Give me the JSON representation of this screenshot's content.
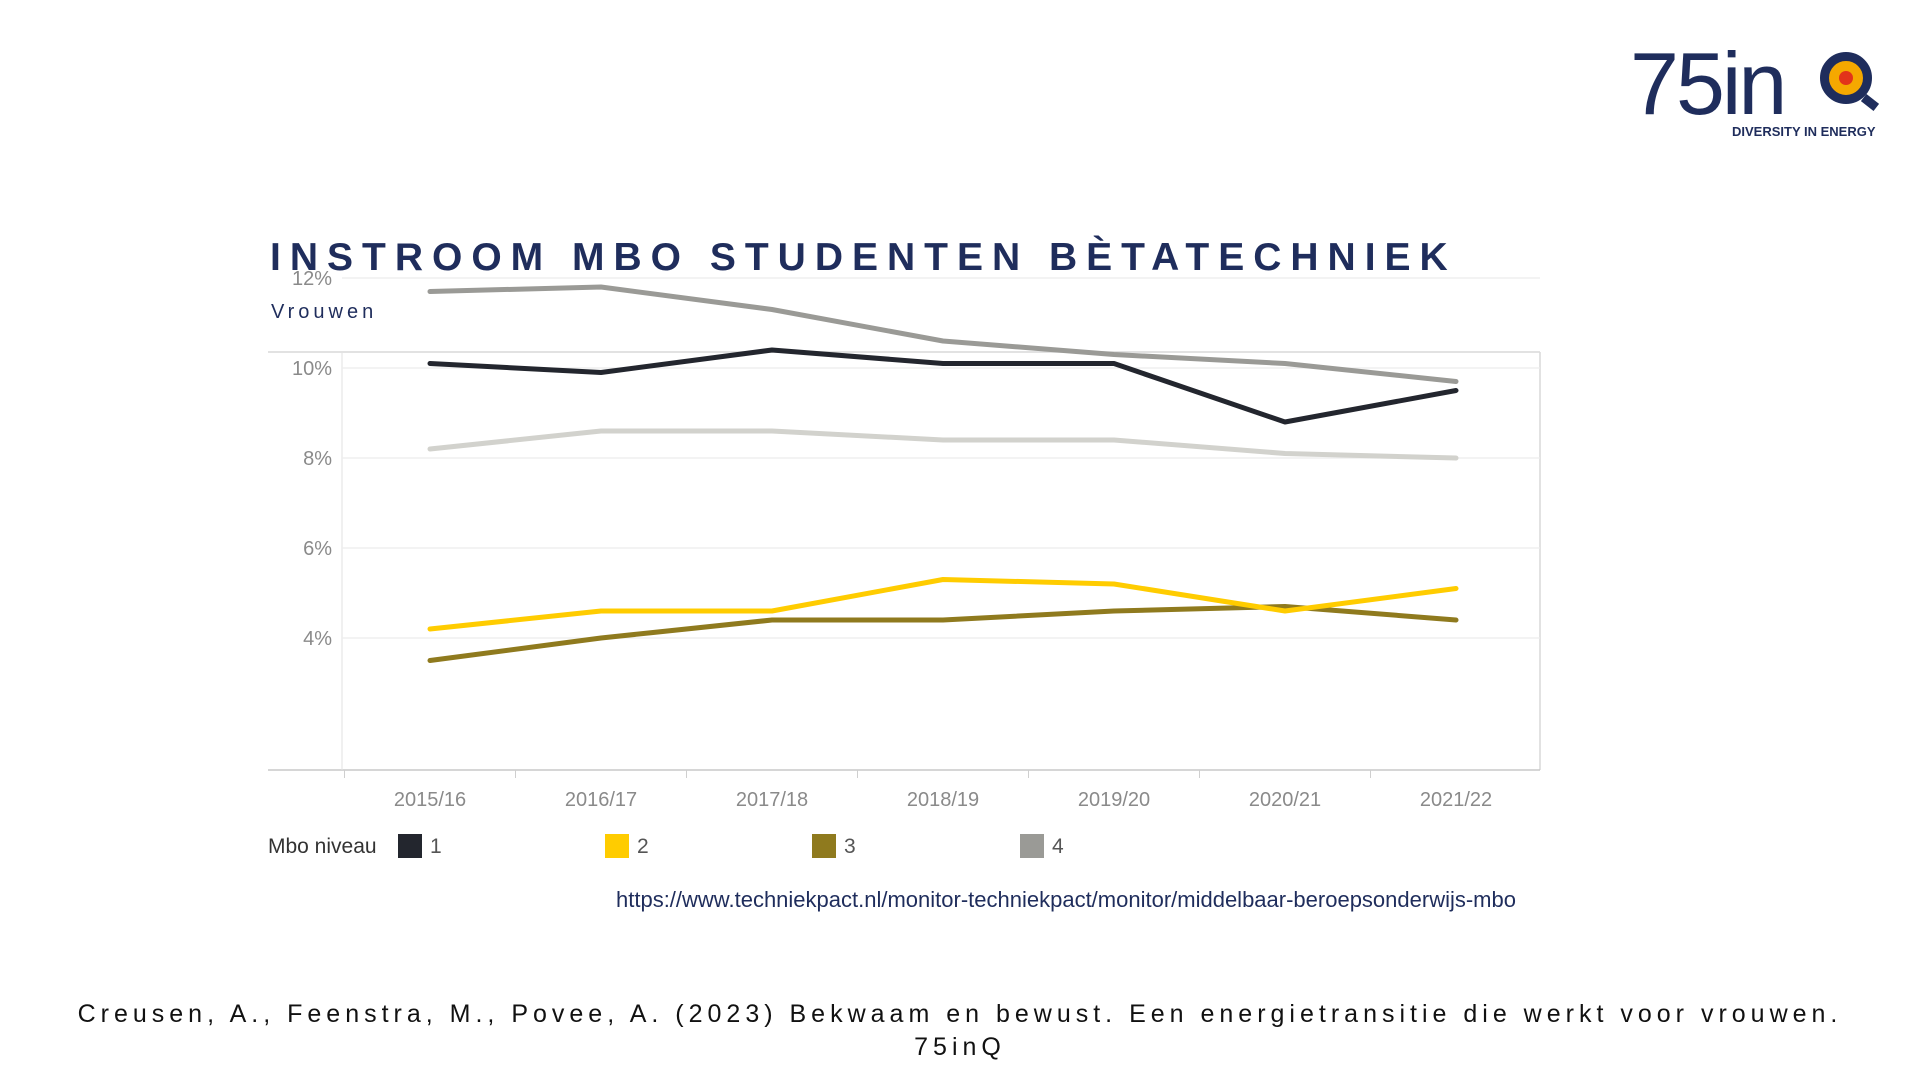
{
  "logo": {
    "text": "75inQ",
    "tagline": "DIVERSITY IN ENERGY"
  },
  "header": {
    "title": "INSTROOM MBO STUDENTEN BÈTATECHNIEK",
    "subtitle": "Vrouwen"
  },
  "legend": {
    "title": "Mbo niveau"
  },
  "source_url": "https://www.techniekpact.nl/monitor-techniekpact/monitor/middelbaar-beroepsonderwijs-mbo",
  "citation": {
    "line1": "Creusen, A., Feenstra, M., Povee, A. (2023) Bekwaam en bewust. Een energietransitie die werkt voor vrouwen.",
    "line2": "75inQ"
  },
  "chart_data": {
    "type": "line",
    "title": "INSTROOM MBO STUDENTEN BÈTATECHNIEK",
    "subtitle": "Vrouwen",
    "xlabel": "",
    "ylabel": "",
    "categories": [
      "2015/16",
      "2016/17",
      "2017/18",
      "2018/19",
      "2019/20",
      "2020/21",
      "2021/22"
    ],
    "y_ticks": [
      4,
      6,
      8,
      10,
      12
    ],
    "y_tick_format": "%",
    "ylim": [
      3.0,
      12.4
    ],
    "grid": true,
    "legend_position": "bottom",
    "legend_title": "Mbo niveau",
    "series": [
      {
        "name": "1",
        "color": "#23262e",
        "values": [
          10.1,
          9.9,
          10.4,
          10.1,
          10.1,
          8.8,
          9.5
        ]
      },
      {
        "name": "2",
        "color": "#ffcc00",
        "values": [
          4.2,
          4.6,
          4.6,
          5.3,
          5.2,
          4.6,
          5.1
        ]
      },
      {
        "name": "3",
        "color": "#8f7a1e",
        "values": [
          3.5,
          4.0,
          4.4,
          4.4,
          4.6,
          4.7,
          4.4
        ]
      },
      {
        "name": "4",
        "color": "#9a9a96",
        "values": [
          11.7,
          11.8,
          11.3,
          10.6,
          10.3,
          10.1,
          9.7
        ]
      },
      {
        "name": "",
        "color": "#d2d2cd",
        "values": [
          8.2,
          8.6,
          8.6,
          8.4,
          8.4,
          8.1,
          8.0
        ]
      }
    ]
  }
}
